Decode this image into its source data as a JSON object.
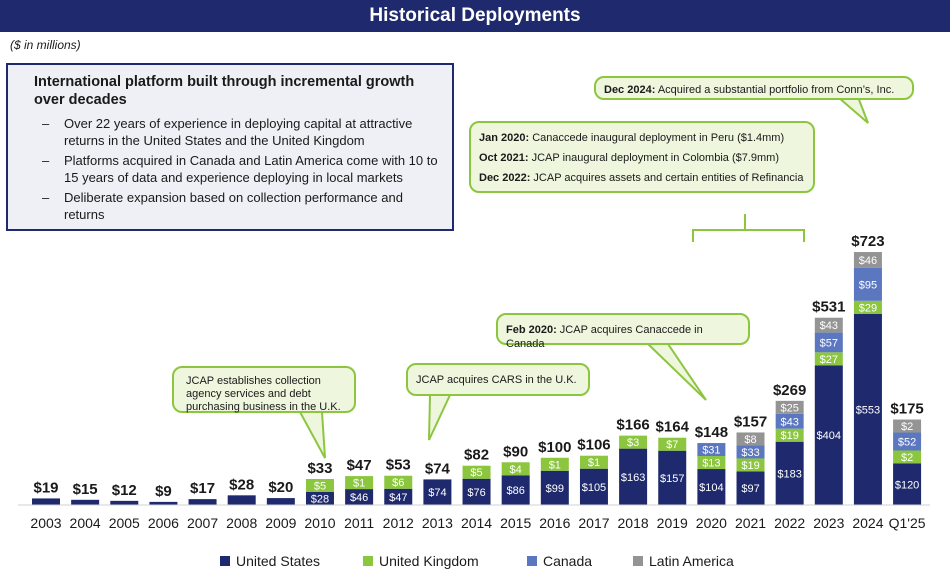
{
  "title": "Historical Deployments",
  "unit_note": "($ in millions)",
  "summary": {
    "heading": "International platform built through incremental growth over decades",
    "bullets": [
      "Over 22 years of experience in deploying capital at attractive returns in the United States and the United Kingdom",
      "Platforms acquired in Canada and Latin America come with 10 to 15 years of data and experience deploying in local markets",
      "Deliberate expansion based on collection performance and returns"
    ]
  },
  "callouts": {
    "conns": {
      "bold": "Dec 2024:",
      "text": " Acquired a substantial portfolio from Conn’s, Inc."
    },
    "latam": [
      {
        "bold": "Jan 2020:",
        "text": " Canaccede inaugural deployment in Peru ($1.4mm)"
      },
      {
        "bold": "Oct 2021:",
        "text": " JCAP inaugural deployment in Colombia ($7.9mm)"
      },
      {
        "bold": "Dec 2022:",
        "text": " JCAP acquires assets and certain entities of Refinancia"
      }
    ],
    "canaccede": {
      "bold": "Feb 2020:",
      "text": " JCAP acquires Canaccede in Canada"
    },
    "cars": "JCAP acquires CARS in the U.K.",
    "uk": "JCAP establishes collection agency services and debt purchasing business in the U.K."
  },
  "colors": {
    "us": "#1f2a6e",
    "uk": "#8cc63f",
    "canada": "#5b77c0",
    "latam": "#949494",
    "callout_border": "#8cc63f"
  },
  "chart_data": {
    "type": "bar",
    "stacked": true,
    "categories": [
      "2003",
      "2004",
      "2005",
      "2006",
      "2007",
      "2008",
      "2009",
      "2010",
      "2011",
      "2012",
      "2013",
      "2014",
      "2015",
      "2016",
      "2017",
      "2018",
      "2019",
      "2020",
      "2021",
      "2022",
      "2023",
      "2024",
      "Q1'25"
    ],
    "series": [
      {
        "name": "United States",
        "values": [
          19,
          15,
          12,
          9,
          17,
          28,
          20,
          28,
          46,
          47,
          74,
          76,
          86,
          99,
          105,
          163,
          157,
          104,
          97,
          183,
          404,
          553,
          120
        ]
      },
      {
        "name": "United Kingdom",
        "values": [
          0,
          0,
          0,
          0,
          0,
          0,
          0,
          5,
          1,
          6,
          0,
          5,
          4,
          1,
          1,
          3,
          7,
          13,
          19,
          19,
          27,
          29,
          2
        ]
      },
      {
        "name": "Canada",
        "values": [
          0,
          0,
          0,
          0,
          0,
          0,
          0,
          0,
          0,
          0,
          0,
          0,
          0,
          0,
          0,
          0,
          0,
          31,
          33,
          43,
          57,
          95,
          52
        ]
      },
      {
        "name": "Latin America",
        "values": [
          0,
          0,
          0,
          0,
          0,
          0,
          0,
          0,
          0,
          0,
          0,
          0,
          0,
          0,
          0,
          0,
          0,
          0,
          8,
          25,
          43,
          46,
          2
        ]
      }
    ],
    "segment_labels": [
      [
        null,
        null,
        null,
        null,
        null,
        null,
        null,
        "$28",
        "$46",
        "$47",
        "$74",
        "$76",
        "$86",
        "$99",
        "$105",
        "$163",
        "$157",
        "$104",
        "$97",
        "$183",
        "$404",
        "$553",
        "$120"
      ],
      [
        null,
        null,
        null,
        null,
        null,
        null,
        null,
        "$5",
        "$1",
        "$6",
        null,
        "$5",
        "$4",
        "$1",
        "$1",
        "$3",
        "$7",
        "$13",
        "$19",
        "$19",
        "$27",
        "$29",
        "$2"
      ],
      [
        null,
        null,
        null,
        null,
        null,
        null,
        null,
        null,
        null,
        null,
        null,
        null,
        null,
        null,
        null,
        null,
        null,
        "$31",
        "$33",
        "$43",
        "$57",
        "$95",
        "$52"
      ],
      [
        null,
        null,
        null,
        null,
        null,
        null,
        null,
        null,
        null,
        null,
        null,
        null,
        null,
        null,
        null,
        null,
        null,
        null,
        "$8",
        "$25",
        "$43",
        "$46",
        "$2"
      ]
    ],
    "totals": [
      19,
      15,
      12,
      9,
      17,
      28,
      20,
      33,
      47,
      53,
      74,
      82,
      90,
      100,
      106,
      166,
      164,
      148,
      157,
      269,
      531,
      723,
      175
    ],
    "total_labels": [
      "$19",
      "$15",
      "$12",
      "$9",
      "$17",
      "$28",
      "$20",
      "$33",
      "$47",
      "$53",
      "$74",
      "$82",
      "$90",
      "$100",
      "$106",
      "$166",
      "$164",
      "$148",
      "$157",
      "$269",
      "$531",
      "$723",
      "$175"
    ],
    "legend": [
      "United States",
      "United Kingdom",
      "Canada",
      "Latin America"
    ],
    "ylim": [
      0,
      800
    ],
    "title": "Historical Deployments",
    "ylabel": "$ in millions"
  }
}
